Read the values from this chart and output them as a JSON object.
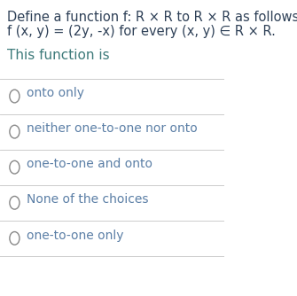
{
  "background_color": "#ffffff",
  "title_line1": "Define a function f: R × R to R × R as follows:",
  "title_line2": "f (x, y) = (2y, -x) for every (x, y) ∈ R × R.",
  "subtitle": "This function is",
  "choices": [
    "onto only",
    "neither one-to-one nor onto",
    "one-to-one and onto",
    "None of the choices",
    "one-to-one only"
  ],
  "text_color_dark": "#2e4057",
  "text_color_choices": "#5b7fa6",
  "text_color_subtitle": "#3d7a7a",
  "separator_color": "#cccccc",
  "circle_color": "#888888",
  "font_size_title": 10.5,
  "font_size_subtitle": 11,
  "font_size_choices": 10
}
